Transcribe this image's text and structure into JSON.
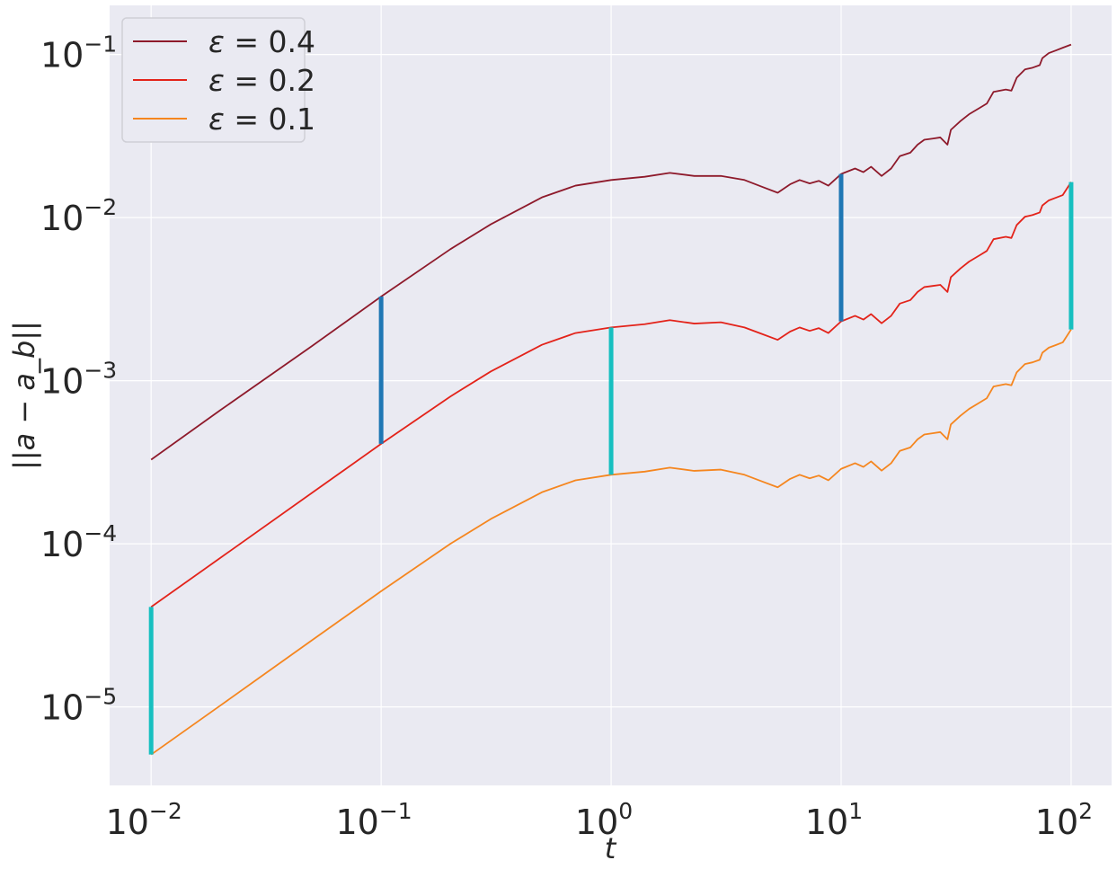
{
  "chart_data": {
    "type": "line",
    "xscale": "log",
    "yscale": "log",
    "xlim": [
      0.0066,
      150
    ],
    "ylim": [
      3.3e-06,
      0.2
    ],
    "xlabel": "t",
    "ylabel": "||a − a_b||",
    "grid": true,
    "background": "#eaeaf2",
    "legend_position": "top-left",
    "x_ticks": [
      {
        "value": 0.01,
        "base": "10",
        "exp": "−2"
      },
      {
        "value": 0.1,
        "base": "10",
        "exp": "−1"
      },
      {
        "value": 1,
        "base": "10",
        "exp": "0"
      },
      {
        "value": 10,
        "base": "10",
        "exp": "1"
      },
      {
        "value": 100,
        "base": "10",
        "exp": "2"
      }
    ],
    "y_ticks": [
      {
        "value": 1e-05,
        "base": "10",
        "exp": "−5"
      },
      {
        "value": 0.0001,
        "base": "10",
        "exp": "−4"
      },
      {
        "value": 0.001,
        "base": "10",
        "exp": "−3"
      },
      {
        "value": 0.01,
        "base": "10",
        "exp": "−2"
      },
      {
        "value": 0.1,
        "base": "10",
        "exp": "−1"
      }
    ],
    "series": [
      {
        "name": "ε = 0.4",
        "symbol": "ε",
        "value_label": " = 0.4",
        "color": "#8e1a2b",
        "points": [
          [
            0.01,
            0.000328
          ],
          [
            0.02,
            0.00066
          ],
          [
            0.05,
            0.00163
          ],
          [
            0.1,
            0.00328
          ],
          [
            0.2,
            0.0064
          ],
          [
            0.3,
            0.0091
          ],
          [
            0.5,
            0.0133
          ],
          [
            0.7,
            0.0157
          ],
          [
            1.0,
            0.017
          ],
          [
            1.4,
            0.0178
          ],
          [
            1.8,
            0.0188
          ],
          [
            2.3,
            0.018
          ],
          [
            3.0,
            0.018
          ],
          [
            3.8,
            0.017
          ],
          [
            4.5,
            0.0155
          ],
          [
            5.3,
            0.0142
          ],
          [
            6.0,
            0.016
          ],
          [
            6.6,
            0.017
          ],
          [
            7.3,
            0.0162
          ],
          [
            8.0,
            0.0168
          ],
          [
            8.8,
            0.0157
          ],
          [
            10.0,
            0.0185
          ],
          [
            11.5,
            0.02
          ],
          [
            12.5,
            0.019
          ],
          [
            13.5,
            0.0205
          ],
          [
            15.0,
            0.018
          ],
          [
            16.5,
            0.02
          ],
          [
            18.0,
            0.0238
          ],
          [
            20.0,
            0.025
          ],
          [
            21.5,
            0.028
          ],
          [
            23.0,
            0.03
          ],
          [
            25.0,
            0.0305
          ],
          [
            27.0,
            0.031
          ],
          [
            29.0,
            0.028
          ],
          [
            30.0,
            0.0345
          ],
          [
            33.0,
            0.039
          ],
          [
            36.0,
            0.043
          ],
          [
            40.0,
            0.047
          ],
          [
            43.0,
            0.05
          ],
          [
            46.0,
            0.059
          ],
          [
            52.0,
            0.061
          ],
          [
            55.0,
            0.06
          ],
          [
            58.0,
            0.072
          ],
          [
            63.0,
            0.081
          ],
          [
            68.0,
            0.083
          ],
          [
            73.0,
            0.086
          ],
          [
            75.0,
            0.095
          ],
          [
            80.0,
            0.102
          ],
          [
            86.0,
            0.106
          ],
          [
            92.0,
            0.11
          ],
          [
            100.0,
            0.115
          ]
        ]
      },
      {
        "name": "ε = 0.2",
        "symbol": "ε",
        "value_label": " = 0.2",
        "color": "#e3231a",
        "points": [
          [
            0.01,
            4.1e-05
          ],
          [
            0.02,
            8.2e-05
          ],
          [
            0.05,
            0.000205
          ],
          [
            0.1,
            0.00041
          ],
          [
            0.2,
            0.0008
          ],
          [
            0.3,
            0.00114
          ],
          [
            0.5,
            0.00166
          ],
          [
            0.7,
            0.00196
          ],
          [
            1.0,
            0.00212
          ],
          [
            1.4,
            0.00222
          ],
          [
            1.8,
            0.00235
          ],
          [
            2.3,
            0.00224
          ],
          [
            3.0,
            0.00228
          ],
          [
            3.8,
            0.00212
          ],
          [
            4.5,
            0.00194
          ],
          [
            5.3,
            0.00178
          ],
          [
            6.0,
            0.002
          ],
          [
            6.6,
            0.00212
          ],
          [
            7.3,
            0.00202
          ],
          [
            8.0,
            0.0021
          ],
          [
            8.8,
            0.00196
          ],
          [
            10.0,
            0.00231
          ],
          [
            11.5,
            0.0025
          ],
          [
            12.5,
            0.00237
          ],
          [
            13.5,
            0.00256
          ],
          [
            15.0,
            0.00225
          ],
          [
            16.5,
            0.0025
          ],
          [
            18.0,
            0.00297
          ],
          [
            20.0,
            0.00312
          ],
          [
            21.5,
            0.0035
          ],
          [
            23.0,
            0.00375
          ],
          [
            25.0,
            0.00381
          ],
          [
            27.0,
            0.00387
          ],
          [
            29.0,
            0.0035
          ],
          [
            30.0,
            0.00431
          ],
          [
            33.0,
            0.00487
          ],
          [
            36.0,
            0.00537
          ],
          [
            40.0,
            0.00587
          ],
          [
            43.0,
            0.00625
          ],
          [
            46.0,
            0.00737
          ],
          [
            52.0,
            0.00762
          ],
          [
            55.0,
            0.0075
          ],
          [
            58.0,
            0.009
          ],
          [
            63.0,
            0.01012
          ],
          [
            68.0,
            0.01037
          ],
          [
            73.0,
            0.01075
          ],
          [
            75.0,
            0.01187
          ],
          [
            80.0,
            0.01275
          ],
          [
            86.0,
            0.01325
          ],
          [
            92.0,
            0.01375
          ],
          [
            100.0,
            0.0165
          ]
        ]
      },
      {
        "name": "ε = 0.1",
        "symbol": "ε",
        "value_label": " = 0.1",
        "color": "#f5861f",
        "points": [
          [
            0.01,
            5.1e-06
          ],
          [
            0.02,
            1.02e-05
          ],
          [
            0.05,
            2.56e-05
          ],
          [
            0.1,
            5.12e-05
          ],
          [
            0.2,
            0.0001
          ],
          [
            0.3,
            0.000142
          ],
          [
            0.5,
            0.000207
          ],
          [
            0.7,
            0.000245
          ],
          [
            1.0,
            0.000265
          ],
          [
            1.4,
            0.000277
          ],
          [
            1.8,
            0.000293
          ],
          [
            2.3,
            0.00028
          ],
          [
            3.0,
            0.000285
          ],
          [
            3.8,
            0.000265
          ],
          [
            4.5,
            0.000242
          ],
          [
            5.3,
            0.000222
          ],
          [
            6.0,
            0.00025
          ],
          [
            6.6,
            0.000265
          ],
          [
            7.3,
            0.000252
          ],
          [
            8.0,
            0.000262
          ],
          [
            8.8,
            0.000245
          ],
          [
            10.0,
            0.000288
          ],
          [
            11.5,
            0.000312
          ],
          [
            12.5,
            0.000296
          ],
          [
            13.5,
            0.00032
          ],
          [
            15.0,
            0.000281
          ],
          [
            16.5,
            0.000312
          ],
          [
            18.0,
            0.000371
          ],
          [
            20.0,
            0.00039
          ],
          [
            21.5,
            0.000437
          ],
          [
            23.0,
            0.000468
          ],
          [
            25.0,
            0.000476
          ],
          [
            27.0,
            0.000484
          ],
          [
            29.0,
            0.000437
          ],
          [
            30.0,
            0.000539
          ],
          [
            33.0,
            0.000609
          ],
          [
            36.0,
            0.000671
          ],
          [
            40.0,
            0.000734
          ],
          [
            43.0,
            0.000781
          ],
          [
            46.0,
            0.000921
          ],
          [
            52.0,
            0.000953
          ],
          [
            55.0,
            0.000937
          ],
          [
            58.0,
            0.001125
          ],
          [
            63.0,
            0.001265
          ],
          [
            68.0,
            0.001296
          ],
          [
            73.0,
            0.001343
          ],
          [
            75.0,
            0.001484
          ],
          [
            80.0,
            0.001594
          ],
          [
            86.0,
            0.001656
          ],
          [
            92.0,
            0.001718
          ],
          [
            100.0,
            0.00206
          ]
        ]
      }
    ],
    "vertical_segments": [
      {
        "x": 0.1,
        "y_from": 0.00041,
        "y_to": 0.00328,
        "color": "#1f77b4"
      },
      {
        "x": 10,
        "y_from": 0.00231,
        "y_to": 0.0185,
        "color": "#1f77b4"
      },
      {
        "x": 0.01,
        "y_from": 5.1e-06,
        "y_to": 4.1e-05,
        "color": "#17bfc0"
      },
      {
        "x": 1,
        "y_from": 0.000265,
        "y_to": 0.00212,
        "color": "#17bfc0"
      },
      {
        "x": 100,
        "y_from": 0.00206,
        "y_to": 0.0165,
        "color": "#17bfc0"
      }
    ]
  }
}
